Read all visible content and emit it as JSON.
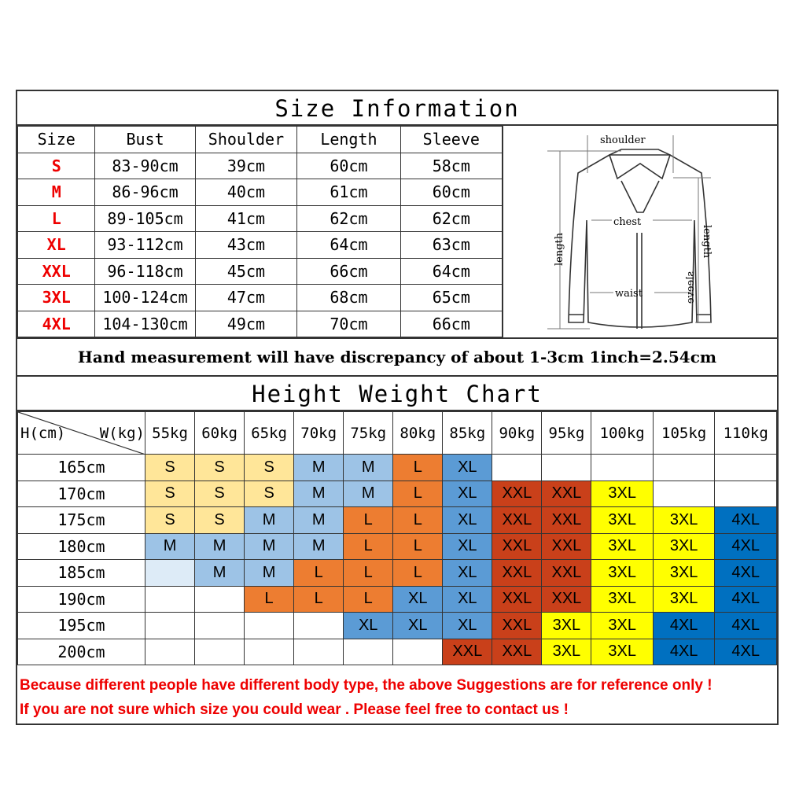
{
  "size_info": {
    "title": "Size Information",
    "headers": [
      "Size",
      "Bust",
      "Shoulder",
      "Length",
      "Sleeve"
    ],
    "rows": [
      [
        "S",
        "83-90cm",
        "39cm",
        "60cm",
        "58cm"
      ],
      [
        "M",
        "86-96cm",
        "40cm",
        "61cm",
        "60cm"
      ],
      [
        "L",
        "89-105cm",
        "41cm",
        "62cm",
        "62cm"
      ],
      [
        "XL",
        "93-112cm",
        "43cm",
        "64cm",
        "63cm"
      ],
      [
        "XXL",
        "96-118cm",
        "45cm",
        "66cm",
        "64cm"
      ],
      [
        "3XL",
        "100-124cm",
        "47cm",
        "68cm",
        "65cm"
      ],
      [
        "4XL",
        "104-130cm",
        "49cm",
        "70cm",
        "66cm"
      ]
    ],
    "diagram": {
      "shoulder": "shoulder",
      "chest": "chest",
      "waist": "waist",
      "length": "length",
      "sleeve": "sleeve",
      "sleeve_length": "length"
    }
  },
  "note": "Hand measurement will have discrepancy of about 1-3cm  1inch=2.54cm",
  "hw_chart": {
    "title": "Height Weight Chart",
    "corner_h": "H(cm)",
    "corner_w": "W(kg)",
    "weights": [
      "55kg",
      "60kg",
      "65kg",
      "70kg",
      "75kg",
      "80kg",
      "85kg",
      "90kg",
      "95kg",
      "100kg",
      "105kg",
      "110kg"
    ],
    "heights": [
      "165cm",
      "170cm",
      "175cm",
      "180cm",
      "185cm",
      "190cm",
      "195cm",
      "200cm"
    ],
    "cells": [
      [
        "S",
        "S",
        "S",
        "M",
        "M",
        "L",
        "XL",
        "",
        "",
        "",
        "",
        ""
      ],
      [
        "S",
        "S",
        "S",
        "M",
        "M",
        "L",
        "XL",
        "XXL",
        "XXL",
        "3XL",
        "",
        ""
      ],
      [
        "S",
        "S",
        "M",
        "M",
        "L",
        "L",
        "XL",
        "XXL",
        "XXL",
        "3XL",
        "3XL",
        "4XL"
      ],
      [
        "M",
        "M",
        "M",
        "M",
        "L",
        "L",
        "XL",
        "XXL",
        "XXL",
        "3XL",
        "3XL",
        "4XL"
      ],
      [
        "*",
        "M",
        "M",
        "L",
        "L",
        "L",
        "XL",
        "XXL",
        "XXL",
        "3XL",
        "3XL",
        "4XL"
      ],
      [
        "",
        "",
        "L",
        "L",
        "L",
        "XL",
        "XL",
        "XXL",
        "XXL",
        "3XL",
        "3XL",
        "4XL"
      ],
      [
        "",
        "",
        "",
        "",
        "XL",
        "XL",
        "XL",
        "XXL",
        "3XL",
        "3XL",
        "4XL",
        "4XL"
      ],
      [
        "",
        "",
        "",
        "",
        "",
        "",
        "XXL",
        "XXL",
        "3XL",
        "3XL",
        "4XL",
        "4XL"
      ]
    ],
    "colors": {
      "S": "#ffe699",
      "M": "#9dc3e6",
      "L": "#ed7d31",
      "XL": "#5b9bd5",
      "XXL": "#c9401a",
      "3XL": "#ffff00",
      "4XL": "#0070c0",
      "*": "#ddebf7"
    }
  },
  "disclaimer": [
    "Because different people have different body type, the above Suggestions are for reference only !",
    "If you are not sure which size you could wear . Please feel free to contact us !"
  ]
}
